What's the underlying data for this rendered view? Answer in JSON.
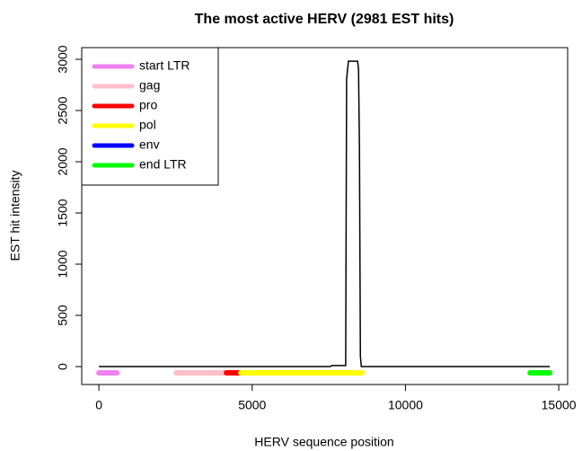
{
  "chart_data": {
    "type": "line",
    "title": "The most active HERV (2981 EST hits)",
    "xlabel": "HERV sequence position",
    "ylabel": "EST hit intensity",
    "x": [
      0,
      7550,
      7600,
      8050,
      8080,
      8110,
      8140,
      8440,
      8470,
      8500,
      8530,
      8560,
      14708
    ],
    "series": [
      {
        "color": "#000000",
        "values": [
          0,
          0,
          10,
          10,
          2800,
          2900,
          2981,
          2981,
          2900,
          2100,
          100,
          0,
          0
        ]
      }
    ],
    "regions": [
      {
        "name": "start LTR",
        "color": "#ee82ee",
        "start": 0,
        "end": 586
      },
      {
        "name": "gag",
        "color": "#ffc0cb",
        "start": 2520,
        "end": 4160
      },
      {
        "name": "pro",
        "color": "#ff0000",
        "start": 4160,
        "end": 4630
      },
      {
        "name": "pol",
        "color": "#ffff00",
        "start": 4630,
        "end": 8585
      },
      {
        "name": "env",
        "color": "#0000ff"
      },
      {
        "name": "end LTR",
        "color": "#00ff00",
        "start": 14064,
        "end": 14708
      }
    ],
    "xlim": [
      -560,
      15290
    ],
    "ylim": [
      -175,
      3114
    ],
    "xticks": [
      0,
      5000,
      10000,
      15000
    ],
    "yticks": [
      0,
      500,
      1000,
      1500,
      2000,
      2500,
      3000
    ],
    "legend": "top-left"
  }
}
